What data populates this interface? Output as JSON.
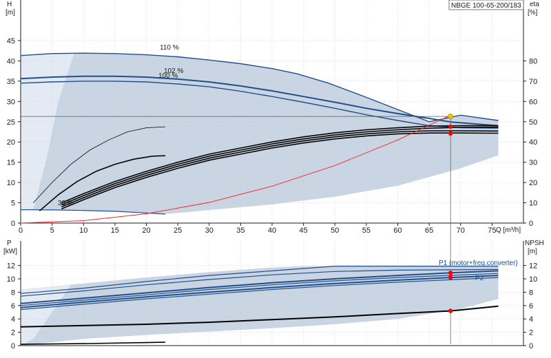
{
  "chart_data": [
    {
      "type": "line",
      "title": "NBGE 100-65-200/183",
      "xlabel": "Q [m³/h]",
      "ylabel_left": [
        "H",
        "[m]"
      ],
      "ylabel_right": [
        "eta",
        "[%]"
      ],
      "xlim": [
        0,
        80
      ],
      "ylim_left": [
        0,
        50
      ],
      "ylim_right": [
        0,
        100
      ],
      "x_ticks": [
        0,
        5,
        10,
        15,
        20,
        25,
        30,
        35,
        40,
        45,
        50,
        55,
        60,
        65,
        70,
        75
      ],
      "y_ticks_left": [
        0,
        5,
        10,
        15,
        20,
        25,
        30,
        35,
        40,
        45
      ],
      "y_ticks_right": [
        0,
        10,
        20,
        30,
        40,
        50,
        60,
        70,
        80
      ],
      "grid": true,
      "series": [
        {
          "name": "110 %",
          "role": "head",
          "x": [
            0,
            5,
            10,
            15,
            20,
            25,
            30,
            35,
            40,
            44,
            49,
            55,
            60,
            65,
            70,
            76
          ],
          "y": [
            41.3,
            41.8,
            41.9,
            41.8,
            41.5,
            41.0,
            40.2,
            39.3,
            38.1,
            36.8,
            34.5,
            31.0,
            28.0,
            25.0,
            26.6,
            25.3
          ]
        },
        {
          "name": "102 %",
          "role": "head",
          "x": [
            0,
            5,
            10,
            15,
            20,
            25,
            30,
            35,
            40,
            45,
            50,
            55,
            60,
            65,
            68.5,
            72,
            76
          ],
          "y": [
            35.6,
            36.0,
            36.2,
            36.2,
            36.0,
            35.5,
            34.8,
            33.8,
            32.6,
            31.2,
            29.8,
            28.3,
            27.0,
            25.8,
            24.9,
            24.5,
            24.0
          ]
        },
        {
          "name": "100 %",
          "role": "head",
          "x": [
            0,
            5,
            10,
            15,
            20,
            25,
            30,
            35,
            40,
            45,
            50,
            55,
            60,
            65,
            70,
            76
          ],
          "y": [
            34.5,
            34.8,
            35.0,
            35.0,
            34.8,
            34.3,
            33.6,
            32.5,
            31.2,
            29.8,
            28.3,
            26.7,
            25.3,
            24.0,
            23.5,
            23.4
          ]
        },
        {
          "name": "30 %",
          "role": "head",
          "x": [
            0,
            5,
            10,
            15,
            20,
            23
          ],
          "y": [
            3.3,
            3.25,
            3.1,
            2.9,
            2.5,
            2.2
          ]
        },
        {
          "name": "",
          "role": "efficiency",
          "x": [
            2,
            5,
            8,
            11,
            14,
            17,
            20,
            23
          ],
          "y": [
            10,
            20,
            29,
            36,
            41,
            45,
            47,
            47.5
          ]
        },
        {
          "name": "",
          "role": "efficiency",
          "x": [
            3,
            6,
            9,
            12,
            15,
            18,
            21,
            23
          ],
          "y": [
            6,
            14,
            20.5,
            25.5,
            29,
            31.5,
            33,
            33.2
          ]
        },
        {
          "name": "",
          "role": "efficiency",
          "x": [
            6.5,
            10,
            15,
            20,
            25,
            30,
            35,
            40,
            45,
            50,
            55,
            60,
            65,
            70,
            76
          ],
          "y": [
            10,
            14.5,
            20.5,
            25.5,
            30,
            34,
            37,
            40,
            42.5,
            44.5,
            46,
            47,
            47.8,
            48,
            48
          ]
        },
        {
          "name": "",
          "role": "efficiency",
          "x": [
            6.5,
            10,
            15,
            20,
            25,
            30,
            35,
            40,
            45,
            50,
            55,
            60,
            65,
            70,
            76
          ],
          "y": [
            9,
            13.5,
            19.5,
            24.5,
            29,
            33,
            36,
            39,
            41.5,
            43.5,
            45,
            46,
            46.8,
            47.2,
            47.3
          ]
        },
        {
          "name": "",
          "role": "efficiency",
          "x": [
            6.5,
            10,
            15,
            20,
            25,
            30,
            35,
            40,
            45,
            50,
            55,
            60,
            65,
            70,
            76
          ],
          "y": [
            8,
            12.5,
            18.5,
            23.5,
            28,
            32,
            35,
            38,
            40.5,
            42.5,
            44,
            45,
            45.5,
            45.5,
            45.4
          ]
        },
        {
          "name": "",
          "role": "efficiency",
          "x": [
            6.5,
            10,
            15,
            20,
            25,
            30,
            35,
            40,
            45,
            50,
            55,
            60,
            65,
            70,
            76
          ],
          "y": [
            7,
            11.5,
            17.5,
            22.5,
            27,
            31,
            34,
            37,
            39.5,
            41.5,
            43,
            44,
            44.4,
            44.4,
            44.3
          ]
        },
        {
          "name": "",
          "role": "system",
          "x": [
            0,
            10,
            20,
            30,
            40,
            50,
            60,
            68.4
          ],
          "y": [
            0,
            0.6,
            2.3,
            5.1,
            9.1,
            14.2,
            20.5,
            26.6
          ]
        }
      ],
      "duty_point": {
        "x": 68.4,
        "y": 26.3
      },
      "point_markers": [
        {
          "x": 68.4,
          "y": 23.8
        },
        {
          "x": 68.4,
          "y": 22.1
        }
      ],
      "envelope_upper": {
        "x": [
          0,
          5,
          10,
          15,
          20,
          25,
          30,
          35,
          40,
          44,
          49,
          55,
          60,
          65,
          70,
          76
        ],
        "y": [
          41.3,
          41.8,
          41.9,
          41.8,
          41.5,
          41.0,
          40.2,
          39.3,
          38.1,
          36.8,
          34.5,
          31.0,
          28.0,
          25.0,
          26.6,
          25.3
        ]
      },
      "envelope_lower": {
        "x": [
          76,
          70,
          60,
          50,
          40,
          30,
          23,
          20,
          10,
          0
        ],
        "y": [
          16.7,
          13.5,
          9.2,
          6.5,
          4.6,
          3.2,
          2.2,
          2.5,
          3.1,
          3.3
        ]
      }
    },
    {
      "type": "line",
      "title": "",
      "xlabel": "",
      "ylabel_left": [
        "P",
        "[kW]"
      ],
      "ylabel_right": [
        "NPSH",
        "[m]"
      ],
      "xlim": [
        0,
        80
      ],
      "ylim": [
        0,
        14
      ],
      "y_ticks": [
        0,
        2,
        4,
        6,
        8,
        10,
        12
      ],
      "grid": true,
      "series": [
        {
          "name": "P1 (motor+freq.converter)",
          "role": "power",
          "x": [
            0,
            10,
            20,
            30,
            40,
            50,
            60,
            68.4,
            76
          ],
          "y": [
            6.3,
            7.1,
            7.9,
            8.7,
            9.4,
            10.0,
            10.5,
            10.9,
            11.2
          ]
        },
        {
          "name": "P2",
          "role": "power",
          "x": [
            0,
            10,
            20,
            30,
            40,
            50,
            60,
            68.4,
            76
          ],
          "y": [
            5.7,
            6.5,
            7.3,
            8.0,
            8.7,
            9.3,
            9.8,
            10.2,
            10.5
          ]
        },
        {
          "name": "",
          "role": "power",
          "x": [
            0,
            10,
            20,
            30,
            40,
            50,
            60,
            76
          ],
          "y": [
            7.8,
            8.6,
            9.6,
            10.5,
            11.2,
            11.9,
            11.9,
            11.9
          ]
        },
        {
          "name": "",
          "role": "power",
          "x": [
            0,
            10,
            20,
            30,
            40,
            50,
            60,
            76
          ],
          "y": [
            7.4,
            8.2,
            9.1,
            9.9,
            10.6,
            11.1,
            11.3,
            11.4
          ]
        },
        {
          "name": "",
          "role": "power",
          "x": [
            0,
            10,
            20,
            30,
            40,
            50,
            60,
            76
          ],
          "y": [
            6.0,
            6.8,
            7.6,
            8.4,
            9.1,
            9.7,
            10.2,
            10.8
          ]
        },
        {
          "name": "",
          "role": "power",
          "x": [
            0,
            10,
            20,
            30,
            40,
            50,
            60,
            76
          ],
          "y": [
            5.4,
            6.2,
            7.0,
            7.7,
            8.4,
            9.0,
            9.5,
            10.2
          ]
        },
        {
          "name": "",
          "role": "npsh",
          "x": [
            0,
            10,
            20,
            30,
            40,
            50,
            60,
            68.4,
            76
          ],
          "y": [
            2.8,
            3.0,
            3.2,
            3.5,
            3.9,
            4.3,
            4.8,
            5.2,
            5.9
          ]
        },
        {
          "name": "",
          "role": "npsh",
          "x": [
            0,
            10,
            20,
            23
          ],
          "y": [
            0.2,
            0.3,
            0.45,
            0.5
          ]
        }
      ],
      "point_markers": [
        {
          "x": 68.4,
          "y": 10.9
        },
        {
          "x": 68.4,
          "y": 10.2
        },
        {
          "x": 68.4,
          "y": 5.2
        }
      ],
      "envelope_upper": {
        "x": [
          0,
          10,
          20,
          30,
          40,
          45,
          50,
          60,
          76
        ],
        "y": [
          8.4,
          9.3,
          10.2,
          11.0,
          11.7,
          11.9,
          11.9,
          11.9,
          11.9
        ]
      },
      "envelope_lower": {
        "x": [
          76,
          70,
          60,
          50,
          40,
          30,
          20,
          10,
          5,
          2,
          0
        ],
        "y": [
          7.0,
          5.5,
          4.0,
          3.2,
          2.6,
          2.1,
          1.6,
          1.0,
          0.5,
          0.2,
          0
        ]
      }
    }
  ],
  "colors": {
    "envelope": "#c9d5e3",
    "envelope_light": "#e3eaf3",
    "curve_blue": "#1f4e8c",
    "curve_black": "#000000",
    "system_curve": "#ff2020",
    "duty_point": "#f5c400",
    "marker": "#ff0000",
    "axis": "#1a1a1a"
  }
}
